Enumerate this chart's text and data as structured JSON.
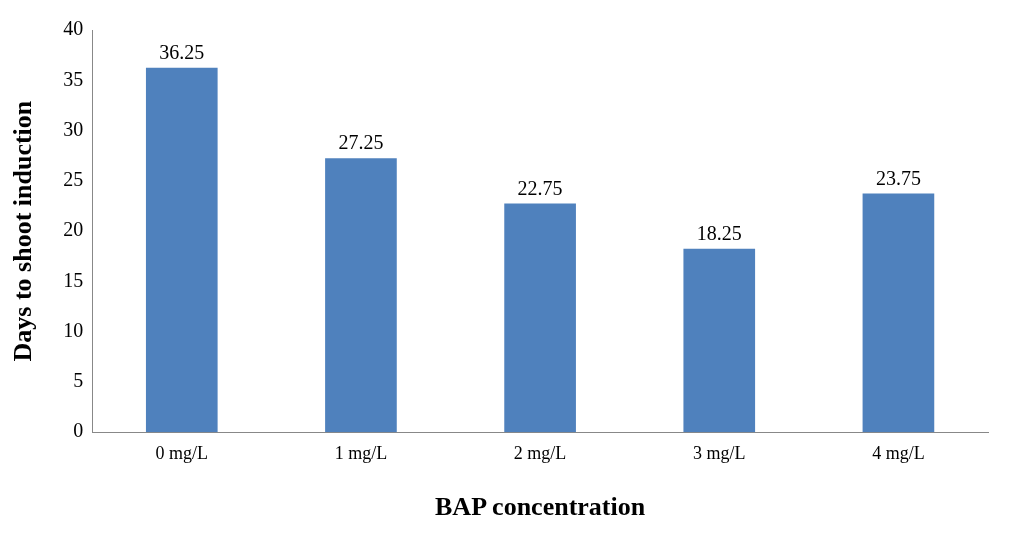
{
  "chart_data": {
    "type": "bar",
    "xlabel": "BAP concentration",
    "ylabel": "Days to shoot induction",
    "categories": [
      "0 mg/L",
      "1 mg/L",
      "2 mg/L",
      "3 mg/L",
      "4 mg/L"
    ],
    "values": [
      36.25,
      27.25,
      22.75,
      18.25,
      23.75
    ],
    "color": "#4f81bd",
    "ylim": [
      0,
      40
    ],
    "yticks": [
      0,
      5,
      10,
      15,
      20,
      25,
      30,
      35,
      40
    ],
    "grid": false,
    "legend": false,
    "data_labels": true
  }
}
